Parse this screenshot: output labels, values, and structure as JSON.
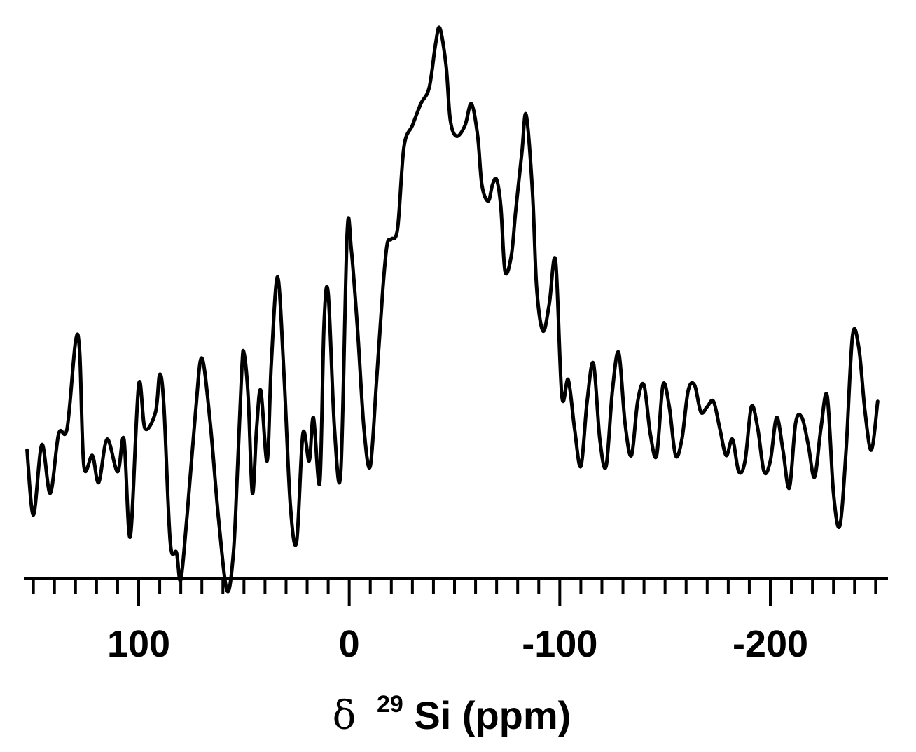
{
  "chart_data": {
    "type": "line",
    "title": "",
    "xlabel_prefix": "δ",
    "xlabel_sup": "29",
    "xlabel_main": "Si (ppm)",
    "ylabel": "",
    "xlim": [
      155,
      -255
    ],
    "ylim": [
      0,
      1
    ],
    "x_reversed": true,
    "y_axis_visible": false,
    "grid": false,
    "major_ticks": [
      100,
      0,
      -100,
      -200
    ],
    "tick_labels": [
      "100",
      "0",
      "-100",
      "-200"
    ],
    "minor_tick_step": 10,
    "series": [
      {
        "color": "#000000",
        "x": [
          153,
          150,
          146,
          142,
          138,
          134,
          130,
          128,
          126,
          122,
          119,
          115,
          110,
          107,
          104,
          100,
          97,
          92,
          90,
          88,
          85,
          82,
          80,
          77,
          73,
          70,
          66,
          62,
          58,
          55,
          53,
          51,
          50,
          48,
          46,
          44,
          42,
          39,
          37,
          34,
          31,
          28,
          25,
          22,
          19,
          17,
          14,
          12,
          10,
          7,
          4,
          1,
          -1,
          -4,
          -7,
          -10,
          -13,
          -16,
          -18,
          -20,
          -23,
          -26,
          -30,
          -34,
          -38,
          -41,
          -43,
          -46,
          -48,
          -51,
          -55,
          -58,
          -61,
          -63,
          -66,
          -68,
          -70,
          -72,
          -74,
          -77,
          -79,
          -82,
          -84,
          -87,
          -89,
          -92,
          -95,
          -98,
          -101,
          -104,
          -107,
          -110,
          -113,
          -116,
          -119,
          -122,
          -125,
          -128,
          -131,
          -134,
          -137,
          -140,
          -143,
          -146,
          -149,
          -152,
          -155,
          -158,
          -161,
          -164,
          -167,
          -170,
          -173,
          -176,
          -179,
          -182,
          -185,
          -188,
          -191,
          -194,
          -197,
          -200,
          -203,
          -206,
          -209,
          -212,
          -215,
          -218,
          -221,
          -224,
          -227,
          -230,
          -233,
          -236,
          -239,
          -242,
          -245,
          -248,
          -251
        ],
        "y": [
          0.22,
          0.1,
          0.23,
          0.14,
          0.25,
          0.26,
          0.42,
          0.4,
          0.19,
          0.21,
          0.16,
          0.24,
          0.18,
          0.24,
          0.06,
          0.34,
          0.26,
          0.29,
          0.36,
          0.3,
          0.05,
          0.03,
          -0.02,
          0.1,
          0.29,
          0.39,
          0.27,
          0.09,
          -0.04,
          0.03,
          0.19,
          0.37,
          0.4,
          0.32,
          0.14,
          0.26,
          0.33,
          0.2,
          0.38,
          0.54,
          0.36,
          0.12,
          0.05,
          0.25,
          0.2,
          0.28,
          0.16,
          0.45,
          0.51,
          0.26,
          0.18,
          0.62,
          0.59,
          0.44,
          0.26,
          0.19,
          0.35,
          0.52,
          0.6,
          0.61,
          0.63,
          0.78,
          0.82,
          0.86,
          0.89,
          0.97,
          1.0,
          0.93,
          0.83,
          0.8,
          0.82,
          0.86,
          0.8,
          0.71,
          0.68,
          0.71,
          0.72,
          0.67,
          0.55,
          0.58,
          0.66,
          0.77,
          0.84,
          0.7,
          0.52,
          0.44,
          0.49,
          0.57,
          0.32,
          0.35,
          0.26,
          0.19,
          0.31,
          0.38,
          0.24,
          0.19,
          0.33,
          0.4,
          0.27,
          0.21,
          0.31,
          0.34,
          0.25,
          0.21,
          0.34,
          0.3,
          0.21,
          0.24,
          0.33,
          0.34,
          0.29,
          0.3,
          0.31,
          0.26,
          0.21,
          0.24,
          0.18,
          0.2,
          0.3,
          0.26,
          0.18,
          0.2,
          0.28,
          0.22,
          0.15,
          0.27,
          0.28,
          0.23,
          0.17,
          0.26,
          0.32,
          0.14,
          0.08,
          0.22,
          0.43,
          0.41,
          0.29,
          0.22,
          0.31
        ]
      }
    ]
  }
}
